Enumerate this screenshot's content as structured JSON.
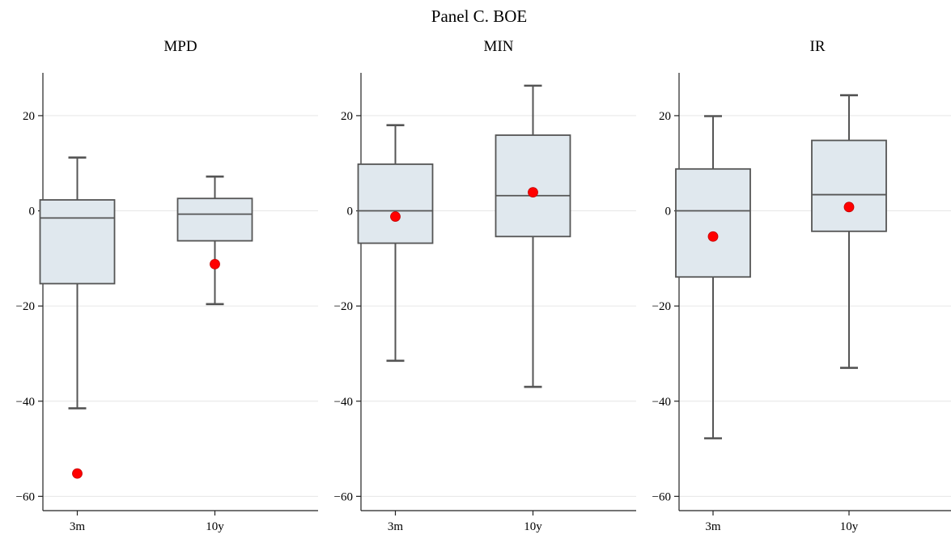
{
  "title": "Panel C. BOE",
  "colors": {
    "box_fill": "#e0e8ee",
    "box_edge": "#555555",
    "marker": "#ff0000",
    "grid": "#e6e6e6"
  },
  "chart_data": [
    {
      "type": "box",
      "title": "MPD",
      "categories": [
        "3m",
        "10y"
      ],
      "ylim": [
        -63,
        29
      ],
      "yticks": [
        20,
        0,
        -20,
        -40,
        -60
      ],
      "ytick_labels": [
        "20",
        "0",
        "−20",
        "−40",
        "−60"
      ],
      "grid": true,
      "boxes": [
        {
          "category": "3m",
          "whisker_low": -41.5,
          "q1": -15.3,
          "median": -1.5,
          "q3": 2.3,
          "whisker_high": 11.2,
          "marker": -55.2
        },
        {
          "category": "10y",
          "whisker_low": -19.6,
          "q1": -6.3,
          "median": -0.7,
          "q3": 2.6,
          "whisker_high": 7.2,
          "marker": -11.2
        }
      ]
    },
    {
      "type": "box",
      "title": "MIN",
      "categories": [
        "3m",
        "10y"
      ],
      "ylim": [
        -63,
        29
      ],
      "yticks": [
        20,
        0,
        -20,
        -40,
        -60
      ],
      "ytick_labels": [
        "20",
        "0",
        "−20",
        "−40",
        "−60"
      ],
      "grid": true,
      "boxes": [
        {
          "category": "3m",
          "whisker_low": -31.5,
          "q1": -6.8,
          "median": 0.0,
          "q3": 9.8,
          "whisker_high": 18.0,
          "marker": -1.2
        },
        {
          "category": "10y",
          "whisker_low": -37.0,
          "q1": -5.4,
          "median": 3.2,
          "q3": 15.9,
          "whisker_high": 26.3,
          "marker": 3.9
        }
      ]
    },
    {
      "type": "box",
      "title": "IR",
      "categories": [
        "3m",
        "10y"
      ],
      "ylim": [
        -63,
        29
      ],
      "yticks": [
        20,
        0,
        -20,
        -40,
        -60
      ],
      "ytick_labels": [
        "20",
        "0",
        "−20",
        "−40",
        "−60"
      ],
      "grid": true,
      "boxes": [
        {
          "category": "3m",
          "whisker_low": -47.8,
          "q1": -13.9,
          "median": 0.0,
          "q3": 8.8,
          "whisker_high": 19.9,
          "marker": -5.4
        },
        {
          "category": "10y",
          "whisker_low": -33.0,
          "q1": -4.3,
          "median": 3.4,
          "q3": 14.8,
          "whisker_high": 24.3,
          "marker": 0.8
        }
      ]
    }
  ]
}
